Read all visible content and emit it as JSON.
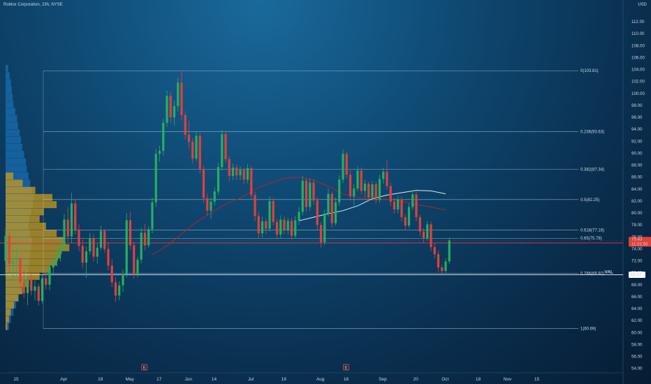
{
  "header": {
    "title": "Roblox Corporation, 23h, NYSE",
    "unit": "USD"
  },
  "chart_data": {
    "type": "candlestick",
    "symbol": "Roblox Corporation",
    "interval": "23h",
    "exchange": "NYSE",
    "y_ticks": [
      "54.00",
      "56.00",
      "58.00",
      "60.00",
      "62.00",
      "64.00",
      "66.00",
      "68.00",
      "70.00",
      "72.00",
      "74.00",
      "76.00",
      "78.00",
      "80.00",
      "82.00",
      "84.00",
      "86.00",
      "88.00",
      "90.00",
      "92.00",
      "94.00",
      "96.00",
      "98.00",
      "100.00",
      "102.00",
      "104.00",
      "106.00",
      "108.00",
      "110.00",
      "112.00"
    ],
    "ylim": [
      53.5,
      114
    ],
    "x_ticks": [
      {
        "label": "15",
        "i": 0
      },
      {
        "label": "Apr",
        "i": 13
      },
      {
        "label": "19",
        "i": 23
      },
      {
        "label": "May",
        "i": 31
      },
      {
        "label": "17",
        "i": 39
      },
      {
        "label": "Jun",
        "i": 47
      },
      {
        "label": "14",
        "i": 54
      },
      {
        "label": "Jul",
        "i": 64
      },
      {
        "label": "19",
        "i": 73
      },
      {
        "label": "Aug",
        "i": 83
      },
      {
        "label": "16",
        "i": 90
      },
      {
        "label": "Sep",
        "i": 100
      },
      {
        "label": "20",
        "i": 109
      },
      {
        "label": "Oct",
        "i": 117
      },
      {
        "label": "18",
        "i": 126
      },
      {
        "label": "Nov",
        "i": 134
      },
      {
        "label": "15",
        "i": 142
      }
    ],
    "fibonacci": [
      {
        "label": "0(103.81)",
        "value": 103.81
      },
      {
        "label": "0.236(93.63)",
        "value": 93.63
      },
      {
        "label": "0.382(87.34)",
        "value": 87.34
      },
      {
        "label": "0.5(82.25)",
        "value": 82.25
      },
      {
        "label": "0.618(77.16)",
        "value": 77.16
      },
      {
        "label": "0.65(75.78)",
        "value": 75.78
      },
      {
        "label": "0.786(69.92)",
        "value": 69.92
      },
      {
        "label": "1(60.69)",
        "value": 60.69
      }
    ],
    "horizontal_line": {
      "value": 75.0,
      "color": "#e0413a"
    },
    "val_level": {
      "label": "VAL",
      "value": 69.67,
      "tag": "69.67"
    },
    "last_price": {
      "value": 75.43,
      "tag": "75.43",
      "countdown": "11:31:50"
    },
    "earnings_markers": [
      {
        "label": "E",
        "i": 35
      },
      {
        "label": "E",
        "i": 90
      }
    ],
    "colors": {
      "up": "#27ae60",
      "down": "#e0413a",
      "ma_red": "#b4232c",
      "ma_white": "#d8eef8",
      "volume_up": "#d4a017",
      "volume_blue": "#1e7fd0"
    },
    "ma_red": [
      [
        40,
        73
      ],
      [
        44,
        74.5
      ],
      [
        48,
        76.5
      ],
      [
        52,
        78.5
      ],
      [
        56,
        80
      ],
      [
        60,
        81.5
      ],
      [
        64,
        82.5
      ],
      [
        68,
        84
      ],
      [
        72,
        85
      ],
      [
        76,
        85.8
      ],
      [
        80,
        86
      ],
      [
        84,
        85.5
      ],
      [
        88,
        84.5
      ],
      [
        92,
        83.2
      ],
      [
        96,
        82.6
      ],
      [
        100,
        82.3
      ],
      [
        104,
        82.3
      ],
      [
        108,
        82
      ],
      [
        112,
        81.4
      ],
      [
        116,
        81
      ],
      [
        120,
        80.5
      ]
    ],
    "ma_white": [
      [
        80,
        78.7
      ],
      [
        84,
        79.3
      ],
      [
        88,
        79.9
      ],
      [
        92,
        80.4
      ],
      [
        96,
        81.2
      ],
      [
        100,
        82.4
      ],
      [
        104,
        83
      ],
      [
        108,
        83.4
      ],
      [
        112,
        83.8
      ],
      [
        116,
        83.7
      ],
      [
        120,
        83.2
      ]
    ],
    "candles": [
      {
        "o": 72.0,
        "h": 77.4,
        "l": 69.4,
        "c": 76.2
      },
      {
        "o": 76.2,
        "h": 76.8,
        "l": 70.0,
        "c": 71.5
      },
      {
        "o": 71.5,
        "h": 73.8,
        "l": 68.6,
        "c": 72.0
      },
      {
        "o": 72.0,
        "h": 74.3,
        "l": 69.6,
        "c": 72.4
      },
      {
        "o": 72.4,
        "h": 72.8,
        "l": 67.3,
        "c": 68.4
      },
      {
        "o": 68.4,
        "h": 70.5,
        "l": 65.8,
        "c": 66.6
      },
      {
        "o": 66.6,
        "h": 69.2,
        "l": 64.6,
        "c": 68.8
      },
      {
        "o": 68.8,
        "h": 70.0,
        "l": 66.2,
        "c": 67.0
      },
      {
        "o": 67.0,
        "h": 68.8,
        "l": 65.4,
        "c": 67.7
      },
      {
        "o": 67.7,
        "h": 68.2,
        "l": 64.5,
        "c": 65.3
      },
      {
        "o": 65.3,
        "h": 69.8,
        "l": 64.8,
        "c": 69.1
      },
      {
        "o": 69.1,
        "h": 70.1,
        "l": 67.2,
        "c": 68.0
      },
      {
        "o": 68.0,
        "h": 71.6,
        "l": 67.1,
        "c": 70.9
      },
      {
        "o": 70.9,
        "h": 72.6,
        "l": 69.8,
        "c": 72.0
      },
      {
        "o": 72.0,
        "h": 74.2,
        "l": 71.1,
        "c": 73.1
      },
      {
        "o": 73.1,
        "h": 75.3,
        "l": 71.9,
        "c": 74.4
      },
      {
        "o": 74.4,
        "h": 79.8,
        "l": 73.9,
        "c": 78.9
      },
      {
        "o": 78.9,
        "h": 81.0,
        "l": 75.2,
        "c": 76.1
      },
      {
        "o": 76.1,
        "h": 83.4,
        "l": 75.0,
        "c": 81.6
      },
      {
        "o": 81.6,
        "h": 82.3,
        "l": 76.4,
        "c": 77.2
      },
      {
        "o": 77.2,
        "h": 78.1,
        "l": 73.6,
        "c": 74.5
      },
      {
        "o": 74.5,
        "h": 75.6,
        "l": 70.8,
        "c": 71.7
      },
      {
        "o": 71.7,
        "h": 74.4,
        "l": 69.2,
        "c": 73.6
      },
      {
        "o": 73.6,
        "h": 76.7,
        "l": 73.0,
        "c": 75.8
      },
      {
        "o": 75.8,
        "h": 76.4,
        "l": 71.9,
        "c": 72.7
      },
      {
        "o": 72.7,
        "h": 74.9,
        "l": 71.5,
        "c": 74.2
      },
      {
        "o": 74.2,
        "h": 77.9,
        "l": 73.8,
        "c": 77.0
      },
      {
        "o": 77.0,
        "h": 77.3,
        "l": 73.4,
        "c": 74.0
      },
      {
        "o": 74.0,
        "h": 75.1,
        "l": 70.4,
        "c": 71.2
      },
      {
        "o": 71.2,
        "h": 72.3,
        "l": 67.6,
        "c": 68.4
      },
      {
        "o": 68.4,
        "h": 69.3,
        "l": 65.2,
        "c": 66.2
      },
      {
        "o": 66.2,
        "h": 68.6,
        "l": 65.4,
        "c": 67.9
      },
      {
        "o": 67.9,
        "h": 70.6,
        "l": 66.8,
        "c": 69.7
      },
      {
        "o": 69.7,
        "h": 80.0,
        "l": 69.2,
        "c": 78.8
      },
      {
        "o": 78.8,
        "h": 80.2,
        "l": 73.9,
        "c": 74.6
      },
      {
        "o": 74.6,
        "h": 75.2,
        "l": 69.0,
        "c": 69.8
      },
      {
        "o": 69.8,
        "h": 72.7,
        "l": 69.3,
        "c": 72.2
      },
      {
        "o": 72.2,
        "h": 77.6,
        "l": 71.6,
        "c": 76.7
      },
      {
        "o": 76.7,
        "h": 78.2,
        "l": 73.8,
        "c": 74.6
      },
      {
        "o": 74.6,
        "h": 77.8,
        "l": 74.2,
        "c": 77.3
      },
      {
        "o": 77.3,
        "h": 82.6,
        "l": 76.6,
        "c": 81.8
      },
      {
        "o": 81.8,
        "h": 90.7,
        "l": 81.0,
        "c": 89.9
      },
      {
        "o": 89.9,
        "h": 91.3,
        "l": 88.6,
        "c": 90.4
      },
      {
        "o": 90.4,
        "h": 95.8,
        "l": 89.6,
        "c": 95.1
      },
      {
        "o": 95.1,
        "h": 100.5,
        "l": 94.4,
        "c": 99.6
      },
      {
        "o": 99.6,
        "h": 100.3,
        "l": 95.0,
        "c": 96.0
      },
      {
        "o": 96.0,
        "h": 98.8,
        "l": 94.6,
        "c": 97.9
      },
      {
        "o": 97.9,
        "h": 102.6,
        "l": 97.0,
        "c": 101.8
      },
      {
        "o": 101.8,
        "h": 103.8,
        "l": 95.5,
        "c": 96.4
      },
      {
        "o": 96.4,
        "h": 97.0,
        "l": 92.3,
        "c": 93.1
      },
      {
        "o": 93.1,
        "h": 95.4,
        "l": 90.8,
        "c": 91.9
      },
      {
        "o": 91.9,
        "h": 92.5,
        "l": 88.3,
        "c": 89.1
      },
      {
        "o": 89.1,
        "h": 93.6,
        "l": 88.7,
        "c": 92.9
      },
      {
        "o": 92.9,
        "h": 93.4,
        "l": 86.6,
        "c": 87.4
      },
      {
        "o": 87.4,
        "h": 87.9,
        "l": 81.7,
        "c": 82.5
      },
      {
        "o": 82.5,
        "h": 83.3,
        "l": 79.6,
        "c": 80.4
      },
      {
        "o": 80.4,
        "h": 82.6,
        "l": 79.0,
        "c": 81.9
      },
      {
        "o": 81.9,
        "h": 84.3,
        "l": 81.3,
        "c": 83.6
      },
      {
        "o": 83.6,
        "h": 88.4,
        "l": 83.0,
        "c": 87.7
      },
      {
        "o": 87.7,
        "h": 93.9,
        "l": 87.1,
        "c": 93.2
      },
      {
        "o": 93.2,
        "h": 93.6,
        "l": 88.4,
        "c": 89.0
      },
      {
        "o": 89.0,
        "h": 89.5,
        "l": 85.3,
        "c": 86.2
      },
      {
        "o": 86.2,
        "h": 88.3,
        "l": 85.5,
        "c": 87.6
      },
      {
        "o": 87.6,
        "h": 88.1,
        "l": 85.5,
        "c": 86.3
      },
      {
        "o": 86.3,
        "h": 87.8,
        "l": 85.5,
        "c": 87.2
      },
      {
        "o": 87.2,
        "h": 87.6,
        "l": 84.8,
        "c": 85.6
      },
      {
        "o": 85.6,
        "h": 88.2,
        "l": 85.0,
        "c": 87.5
      },
      {
        "o": 87.5,
        "h": 87.9,
        "l": 82.4,
        "c": 83.0
      },
      {
        "o": 83.0,
        "h": 83.6,
        "l": 78.6,
        "c": 79.5
      },
      {
        "o": 79.5,
        "h": 80.2,
        "l": 75.8,
        "c": 76.6
      },
      {
        "o": 76.6,
        "h": 79.4,
        "l": 75.9,
        "c": 78.6
      },
      {
        "o": 78.6,
        "h": 79.1,
        "l": 76.5,
        "c": 77.4
      },
      {
        "o": 77.4,
        "h": 82.8,
        "l": 76.9,
        "c": 82.0
      },
      {
        "o": 82.0,
        "h": 82.5,
        "l": 77.9,
        "c": 78.5
      },
      {
        "o": 78.5,
        "h": 79.0,
        "l": 75.6,
        "c": 76.4
      },
      {
        "o": 76.4,
        "h": 79.6,
        "l": 75.8,
        "c": 78.9
      },
      {
        "o": 78.9,
        "h": 79.5,
        "l": 76.5,
        "c": 77.2
      },
      {
        "o": 77.2,
        "h": 79.2,
        "l": 76.4,
        "c": 78.7
      },
      {
        "o": 78.7,
        "h": 79.2,
        "l": 75.6,
        "c": 76.2
      },
      {
        "o": 76.2,
        "h": 79.5,
        "l": 75.7,
        "c": 78.8
      },
      {
        "o": 78.8,
        "h": 81.0,
        "l": 78.0,
        "c": 80.2
      },
      {
        "o": 80.2,
        "h": 86.2,
        "l": 79.6,
        "c": 85.4
      },
      {
        "o": 85.4,
        "h": 85.9,
        "l": 80.2,
        "c": 81.0
      },
      {
        "o": 81.0,
        "h": 85.8,
        "l": 80.4,
        "c": 85.1
      },
      {
        "o": 85.1,
        "h": 85.6,
        "l": 81.4,
        "c": 82.1
      },
      {
        "o": 82.1,
        "h": 82.7,
        "l": 77.2,
        "c": 78.0
      },
      {
        "o": 78.0,
        "h": 78.5,
        "l": 74.2,
        "c": 75.1
      },
      {
        "o": 75.1,
        "h": 80.6,
        "l": 74.7,
        "c": 79.9
      },
      {
        "o": 79.9,
        "h": 84.1,
        "l": 79.4,
        "c": 83.2
      },
      {
        "o": 83.2,
        "h": 83.6,
        "l": 77.6,
        "c": 78.3
      },
      {
        "o": 78.3,
        "h": 82.6,
        "l": 77.9,
        "c": 81.8
      },
      {
        "o": 81.8,
        "h": 86.3,
        "l": 81.2,
        "c": 85.6
      },
      {
        "o": 85.6,
        "h": 90.6,
        "l": 85.0,
        "c": 89.9
      },
      {
        "o": 89.9,
        "h": 90.3,
        "l": 85.8,
        "c": 86.4
      },
      {
        "o": 86.4,
        "h": 87.2,
        "l": 82.1,
        "c": 82.8
      },
      {
        "o": 82.8,
        "h": 84.8,
        "l": 81.3,
        "c": 84.1
      },
      {
        "o": 84.1,
        "h": 87.8,
        "l": 83.6,
        "c": 87.1
      },
      {
        "o": 87.1,
        "h": 87.6,
        "l": 83.1,
        "c": 83.7
      },
      {
        "o": 83.7,
        "h": 85.6,
        "l": 82.6,
        "c": 84.9
      },
      {
        "o": 84.9,
        "h": 85.3,
        "l": 81.9,
        "c": 82.6
      },
      {
        "o": 82.6,
        "h": 85.4,
        "l": 82.1,
        "c": 84.8
      },
      {
        "o": 84.8,
        "h": 85.3,
        "l": 81.6,
        "c": 82.2
      },
      {
        "o": 82.2,
        "h": 86.4,
        "l": 81.7,
        "c": 85.7
      },
      {
        "o": 85.7,
        "h": 87.6,
        "l": 84.9,
        "c": 86.9
      },
      {
        "o": 86.9,
        "h": 88.8,
        "l": 83.9,
        "c": 84.5
      },
      {
        "o": 84.5,
        "h": 85.1,
        "l": 81.2,
        "c": 81.9
      },
      {
        "o": 81.9,
        "h": 82.5,
        "l": 79.9,
        "c": 80.6
      },
      {
        "o": 80.6,
        "h": 82.9,
        "l": 80.0,
        "c": 82.3
      },
      {
        "o": 82.3,
        "h": 82.8,
        "l": 78.6,
        "c": 79.3
      },
      {
        "o": 79.3,
        "h": 79.8,
        "l": 77.1,
        "c": 77.9
      },
      {
        "o": 77.9,
        "h": 81.6,
        "l": 77.5,
        "c": 81.0
      },
      {
        "o": 81.0,
        "h": 83.8,
        "l": 80.5,
        "c": 83.1
      },
      {
        "o": 83.1,
        "h": 83.5,
        "l": 78.6,
        "c": 79.3
      },
      {
        "o": 79.3,
        "h": 79.7,
        "l": 76.1,
        "c": 76.9
      },
      {
        "o": 76.9,
        "h": 77.5,
        "l": 75.0,
        "c": 75.8
      },
      {
        "o": 75.8,
        "h": 78.7,
        "l": 75.4,
        "c": 78.1
      },
      {
        "o": 78.1,
        "h": 78.6,
        "l": 73.6,
        "c": 74.3
      },
      {
        "o": 74.3,
        "h": 75.0,
        "l": 72.4,
        "c": 73.1
      },
      {
        "o": 73.1,
        "h": 73.7,
        "l": 70.1,
        "c": 70.9
      },
      {
        "o": 70.9,
        "h": 71.3,
        "l": 69.7,
        "c": 70.3
      },
      {
        "o": 70.3,
        "h": 72.5,
        "l": 70.0,
        "c": 71.9
      },
      {
        "o": 71.9,
        "h": 75.9,
        "l": 71.5,
        "c": 75.4
      }
    ],
    "volume_profile": {
      "bins": [
        {
          "p": 104.2,
          "b": 6,
          "y": 0
        },
        {
          "p": 103.0,
          "b": 9,
          "y": 0
        },
        {
          "p": 101.8,
          "b": 12,
          "y": 0
        },
        {
          "p": 100.6,
          "b": 14,
          "y": 0
        },
        {
          "p": 99.4,
          "b": 16,
          "y": 0
        },
        {
          "p": 98.2,
          "b": 18,
          "y": 0
        },
        {
          "p": 97.0,
          "b": 22,
          "y": 0
        },
        {
          "p": 95.8,
          "b": 26,
          "y": 0
        },
        {
          "p": 94.6,
          "b": 28,
          "y": 0
        },
        {
          "p": 93.4,
          "b": 32,
          "y": 0
        },
        {
          "p": 92.2,
          "b": 35,
          "y": 0
        },
        {
          "p": 91.0,
          "b": 38,
          "y": 0
        },
        {
          "p": 89.8,
          "b": 42,
          "y": 0
        },
        {
          "p": 88.6,
          "b": 46,
          "y": 0
        },
        {
          "p": 87.4,
          "b": 48,
          "y": 0
        },
        {
          "p": 86.2,
          "b": 52,
          "y": 18
        },
        {
          "p": 85.0,
          "b": 56,
          "y": 40
        },
        {
          "p": 83.8,
          "b": 60,
          "y": 70
        },
        {
          "p": 82.6,
          "b": 64,
          "y": 110
        },
        {
          "p": 81.4,
          "b": 62,
          "y": 120
        },
        {
          "p": 80.2,
          "b": 58,
          "y": 90
        },
        {
          "p": 79.0,
          "b": 54,
          "y": 80
        },
        {
          "p": 77.8,
          "b": 52,
          "y": 95
        },
        {
          "p": 76.6,
          "b": 55,
          "y": 120
        },
        {
          "p": 75.4,
          "b": 60,
          "y": 140
        },
        {
          "p": 74.2,
          "b": 58,
          "y": 150
        },
        {
          "p": 73.0,
          "b": 56,
          "y": 130
        },
        {
          "p": 71.8,
          "b": 54,
          "y": 120
        },
        {
          "p": 70.6,
          "b": 52,
          "y": 105
        },
        {
          "p": 69.4,
          "b": 48,
          "y": 80
        },
        {
          "p": 68.2,
          "b": 42,
          "y": 55
        },
        {
          "p": 67.0,
          "b": 36,
          "y": 40
        },
        {
          "p": 65.8,
          "b": 30,
          "y": 30
        },
        {
          "p": 64.6,
          "b": 24,
          "y": 20
        },
        {
          "p": 63.4,
          "b": 18,
          "y": 12
        },
        {
          "p": 62.2,
          "b": 12,
          "y": 8
        },
        {
          "p": 61.0,
          "b": 8,
          "y": 4
        }
      ]
    }
  }
}
